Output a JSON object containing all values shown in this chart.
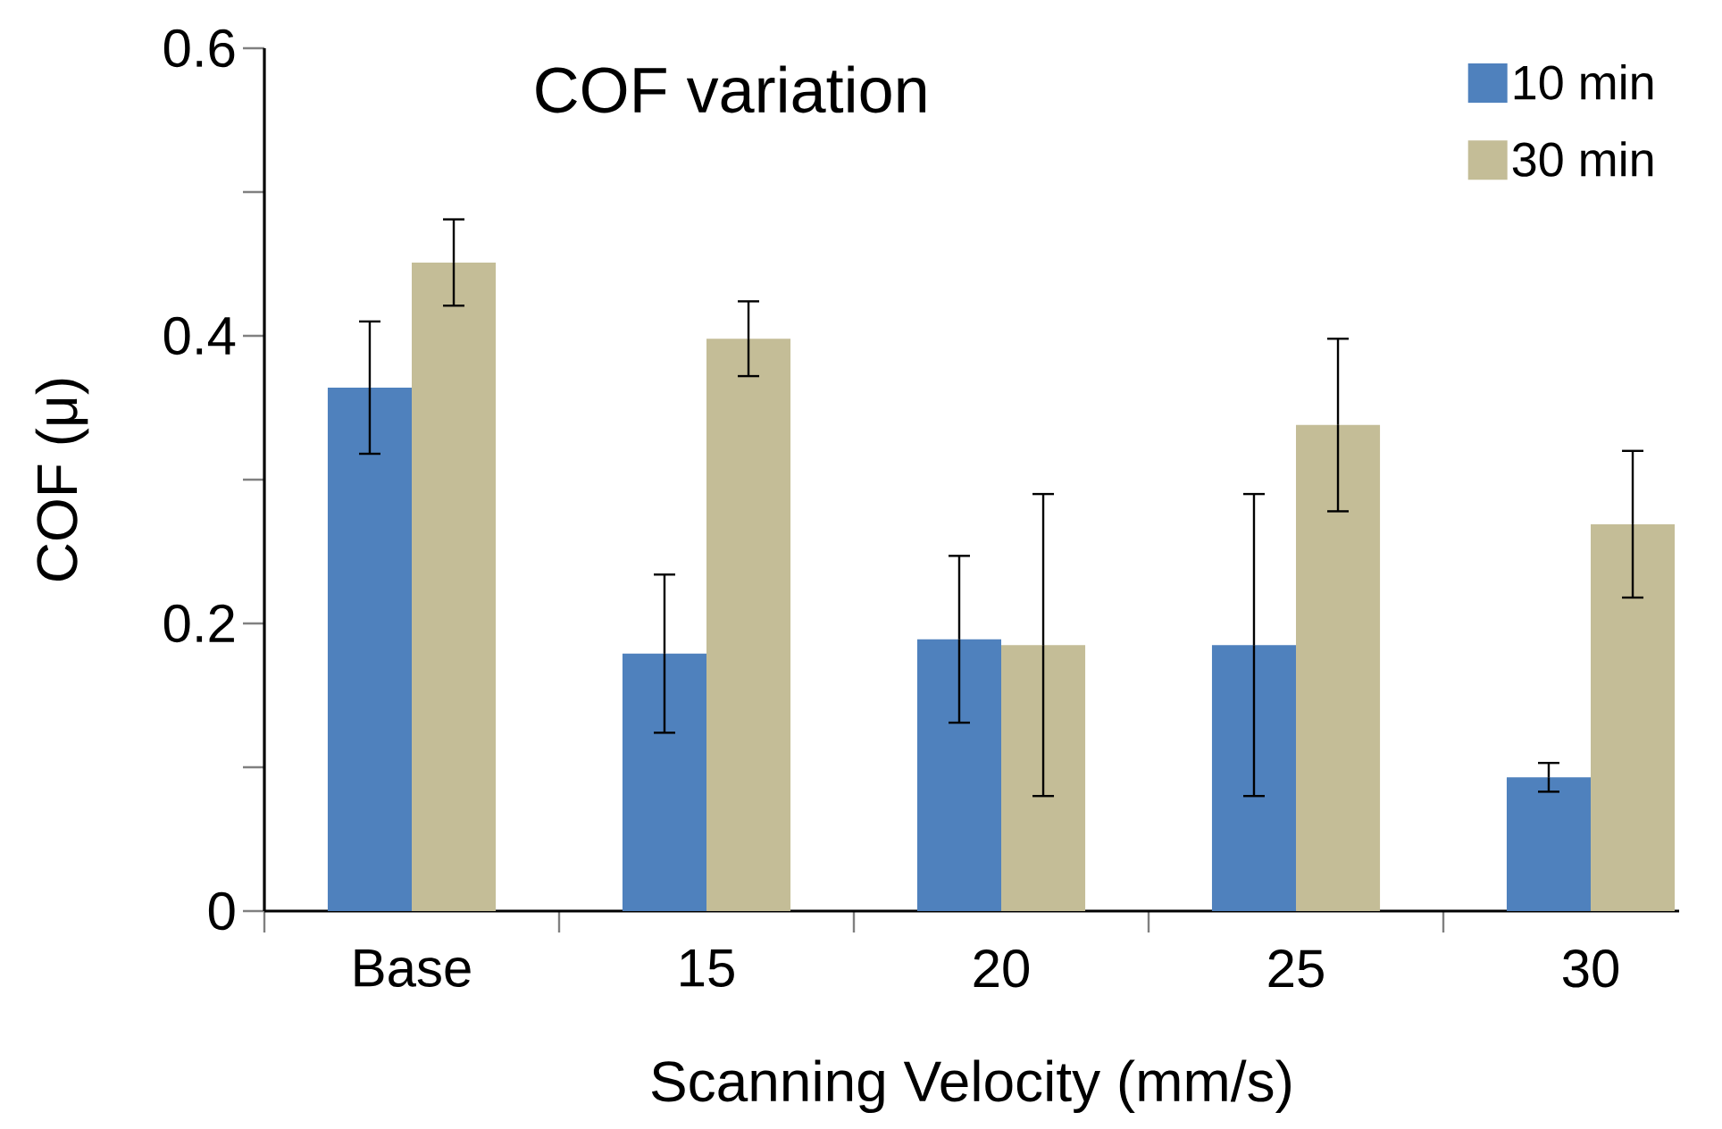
{
  "chart_data": {
    "type": "bar",
    "title": "COF variation",
    "xlabel": "Scanning Velocity (mm/s)",
    "ylabel": "COF (μ)",
    "categories": [
      "Base",
      "15",
      "20",
      "25",
      "30"
    ],
    "series": [
      {
        "name": "10 min",
        "color": "#4f81bd",
        "values": [
          0.364,
          0.179,
          0.189,
          0.185,
          0.093
        ],
        "errors": [
          0.046,
          0.055,
          0.058,
          0.105,
          0.01
        ]
      },
      {
        "name": "30 min",
        "color": "#c4bd97",
        "values": [
          0.451,
          0.398,
          0.185,
          0.338,
          0.269
        ],
        "errors": [
          0.03,
          0.026,
          0.105,
          0.06,
          0.051
        ]
      }
    ],
    "ylim": [
      0,
      0.6
    ],
    "yticks": [
      0,
      {
        "value": 0.1,
        "label": null
      },
      0.2,
      {
        "value": 0.3,
        "label": null
      },
      0.4,
      {
        "value": 0.5,
        "label": null
      },
      0.6
    ],
    "legend": "top right",
    "grid": false
  }
}
